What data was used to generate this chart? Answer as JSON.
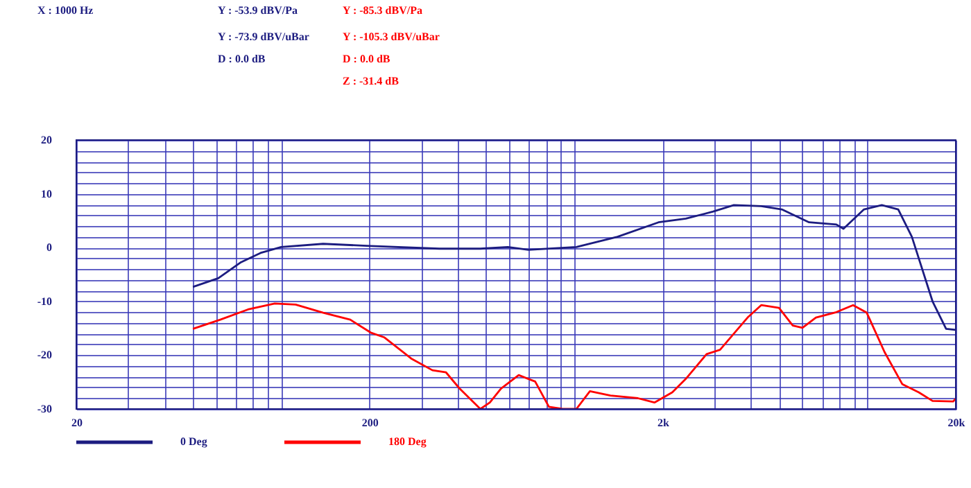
{
  "chart_data": {
    "type": "line",
    "log": "x",
    "grid": true,
    "legend": "bottom",
    "marker": "none",
    "line_style": "solid",
    "xlim": [
      20,
      20000
    ],
    "ylim": [
      -30,
      20
    ],
    "xticks": [
      {
        "value": 20,
        "label": "20"
      },
      {
        "value": 30,
        "label": null
      },
      {
        "value": 40,
        "label": null
      },
      {
        "value": 50,
        "label": null
      },
      {
        "value": 60,
        "label": null
      },
      {
        "value": 70,
        "label": null
      },
      {
        "value": 80,
        "label": null
      },
      {
        "value": 90,
        "label": null
      },
      {
        "value": 100,
        "label": null
      },
      {
        "value": 200,
        "label": "200"
      },
      {
        "value": 300,
        "label": null
      },
      {
        "value": 400,
        "label": null
      },
      {
        "value": 500,
        "label": null
      },
      {
        "value": 600,
        "label": null
      },
      {
        "value": 700,
        "label": null
      },
      {
        "value": 800,
        "label": null
      },
      {
        "value": 900,
        "label": null
      },
      {
        "value": 1000,
        "label": null
      },
      {
        "value": 2000,
        "label": "2k"
      },
      {
        "value": 3000,
        "label": null
      },
      {
        "value": 4000,
        "label": null
      },
      {
        "value": 5000,
        "label": null
      },
      {
        "value": 6000,
        "label": null
      },
      {
        "value": 7000,
        "label": null
      },
      {
        "value": 8000,
        "label": null
      },
      {
        "value": 9000,
        "label": null
      },
      {
        "value": 10000,
        "label": null
      },
      {
        "value": 20000,
        "label": "20k"
      }
    ],
    "yticks": [
      -30,
      {
        "value": -28,
        "label": null
      },
      {
        "value": -26,
        "label": null
      },
      {
        "value": -24,
        "label": null
      },
      {
        "value": -22,
        "label": null
      },
      -20,
      {
        "value": -18,
        "label": null
      },
      {
        "value": -16,
        "label": null
      },
      {
        "value": -14,
        "label": null
      },
      {
        "value": -12,
        "label": null
      },
      -10,
      {
        "value": -8,
        "label": null
      },
      {
        "value": -6,
        "label": null
      },
      {
        "value": -4,
        "label": null
      },
      {
        "value": -2,
        "label": null
      },
      0,
      {
        "value": 2,
        "label": null
      },
      {
        "value": 4,
        "label": null
      },
      {
        "value": 6,
        "label": null
      },
      {
        "value": 8,
        "label": null
      },
      10,
      {
        "value": 12,
        "label": null
      },
      {
        "value": 14,
        "label": null
      },
      {
        "value": 16,
        "label": null
      },
      {
        "value": 18,
        "label": null
      },
      20
    ],
    "annotations": [
      "X : 1000 Hz",
      "Y : -53.9 dBV/Pa",
      "Y : -73.9 dBV/uBar",
      "D : 0.0 dB",
      "Y : -85.3 dBV/Pa",
      "Y : -105.3 dBV/uBar",
      "D : 0.0 dB",
      "Z : -31.4 dB"
    ],
    "series": [
      {
        "name": "0 Deg",
        "color": "#1c1c80",
        "x": [
          50,
          61,
          73,
          85,
          100,
          139,
          202,
          346,
          478,
          593,
          697,
          1016,
          1403,
          1937,
          2400,
          2978,
          3500,
          4340,
          5100,
          6320,
          7830,
          8280,
          9730,
          11190,
          12730,
          14170,
          16670,
          18540,
          20000
        ],
        "values": [
          -7.3,
          -5.7,
          -2.7,
          -1.0,
          0.1,
          0.7,
          0.3,
          -0.2,
          -0.2,
          0.1,
          -0.4,
          0.1,
          2.0,
          4.7,
          5.4,
          6.7,
          7.9,
          7.7,
          7.1,
          4.7,
          4.3,
          3.5,
          7.1,
          7.9,
          7.1,
          2.0,
          -10,
          -15.1,
          -15.3
        ]
      },
      {
        "name": "180 Deg",
        "color": "#ff0000",
        "x": [
          50,
          62,
          77,
          95,
          112,
          139,
          172,
          202,
          225,
          279,
          328,
          365,
          406,
          478,
          515,
          562,
          646,
          735,
          819,
          912,
          1016,
          1130,
          1328,
          1648,
          1876,
          2158,
          2400,
          2825,
          3140,
          3900,
          4340,
          4990,
          5560,
          6000,
          6670,
          7830,
          8930,
          9940,
          11430,
          13150,
          14960,
          16670,
          19580,
          20000
        ],
        "values": [
          -15.1,
          -13.4,
          -11.5,
          -10.4,
          -10.6,
          -12.1,
          -13.4,
          -15.8,
          -16.7,
          -20.7,
          -22.8,
          -23.2,
          -26.2,
          -30,
          -28.8,
          -26.2,
          -23.7,
          -24.9,
          -29.6,
          -30,
          -30,
          -26.7,
          -27.5,
          -28,
          -28.8,
          -26.9,
          -24.4,
          -19.8,
          -19,
          -13,
          -10.7,
          -11.2,
          -14.5,
          -14.9,
          -13,
          -12,
          -10.7,
          -12.1,
          -19.4,
          -25.4,
          -26.9,
          -28.5,
          -28.6,
          -28.1
        ]
      }
    ]
  }
}
